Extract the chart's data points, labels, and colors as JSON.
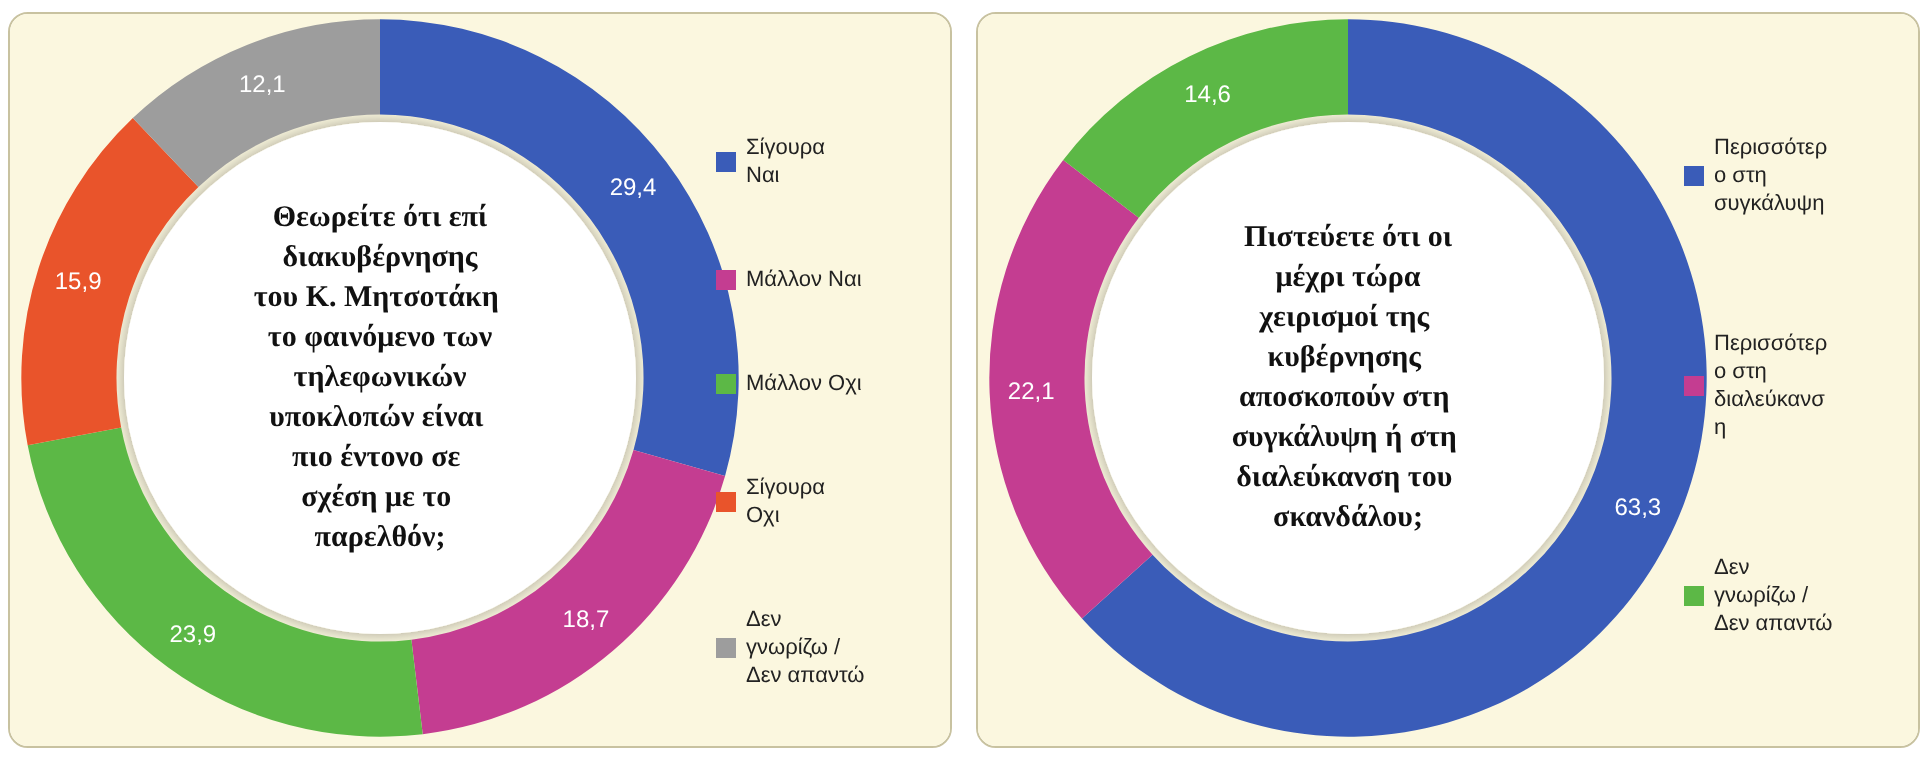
{
  "chart_data": [
    {
      "type": "donut",
      "title": "Θεωρείτε ότι επί διακυβέρνησης του Κ. Μητσοτάκη το φαινόμενο των τηλεφωνικών υποκλοπών είναι πιο έντονο σε σχέση με το παρελθόν;",
      "categories": [
        "Σίγουρα Ναι",
        "Μάλλον Ναι",
        "Μάλλον Οχι",
        "Σίγουρα Οχι",
        "Δεν γνωρίζω / Δεν απαντώ"
      ],
      "values": [
        29.4,
        18.7,
        23.9,
        15.9,
        12.1
      ],
      "value_labels": [
        "29,4",
        "18,7",
        "23,9",
        "15,9",
        "12,1"
      ],
      "colors": [
        "#3a5cb8",
        "#c43d91",
        "#5cb846",
        "#e9542b",
        "#9d9d9d"
      ],
      "legend": "right"
    },
    {
      "type": "donut",
      "title": "Πιστεύετε ότι οι μέχρι τώρα χειρισμοί της κυβέρνησης αποσκοπούν στη συγκάλυψη ή στη διαλεύκανση του σκανδάλου;",
      "categories": [
        "Περισσότερο στη συγκάλυψη",
        "Περισσότερο στη διαλεύκανση",
        "Δεν γνωρίζω / Δεν απαντώ"
      ],
      "values": [
        63.3,
        22.1,
        14.6
      ],
      "value_labels": [
        "63,3",
        "22,1",
        "14,6"
      ],
      "colors": [
        "#3a5cb8",
        "#c43d91",
        "#5cb846"
      ],
      "legend": "right"
    }
  ]
}
